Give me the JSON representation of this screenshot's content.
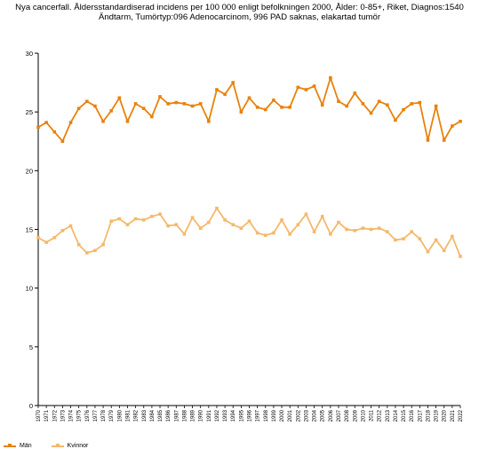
{
  "chart_data": {
    "type": "line",
    "title": "Nya cancerfall. Åldersstandardiserad incidens per 100 000 enligt befolkningen 2000, Ålder: 0-85+, Riket, Diagnos:1540",
    "subtitle": "Ändtarm, Tumörtyp:096 Adenocarcinom, 996 PAD saknas, elakartad tumör",
    "xlabel": "",
    "ylabel": "",
    "ylim": [
      0,
      30
    ],
    "yticks": [
      0,
      5,
      10,
      15,
      20,
      25,
      30
    ],
    "grid": false,
    "legend_position": "bottom-left",
    "categories": [
      "1970",
      "1971",
      "1972",
      "1973",
      "1974",
      "1975",
      "1976",
      "1977",
      "1978",
      "1979",
      "1980",
      "1981",
      "1982",
      "1983",
      "1984",
      "1985",
      "1986",
      "1987",
      "1988",
      "1989",
      "1990",
      "1991",
      "1992",
      "1993",
      "1994",
      "1995",
      "1996",
      "1997",
      "1998",
      "1999",
      "2000",
      "2001",
      "2002",
      "2003",
      "2004",
      "2005",
      "2006",
      "2007",
      "2008",
      "2009",
      "2010",
      "2011",
      "2012",
      "2013",
      "2014",
      "2015",
      "2016",
      "2017",
      "2018",
      "2019",
      "2020",
      "2021",
      "2022"
    ],
    "series": [
      {
        "name": "Män",
        "color": "#e8820c",
        "values": [
          23.7,
          24.1,
          23.3,
          22.5,
          24.1,
          25.3,
          25.9,
          25.5,
          24.2,
          25.1,
          26.2,
          24.2,
          25.7,
          25.3,
          24.6,
          26.3,
          25.7,
          25.8,
          25.7,
          25.5,
          25.7,
          24.2,
          26.9,
          26.5,
          27.5,
          25.0,
          26.2,
          25.4,
          25.2,
          26.0,
          25.4,
          25.4,
          27.1,
          26.9,
          27.2,
          25.6,
          27.9,
          25.9,
          25.5,
          26.6,
          25.7,
          24.9,
          25.9,
          25.6,
          24.3,
          25.2,
          25.7,
          25.8,
          22.6,
          25.5,
          22.6,
          23.8,
          24.2
        ]
      },
      {
        "name": "Kvinnor",
        "color": "#f5b86a",
        "values": [
          14.3,
          13.9,
          14.3,
          14.9,
          15.3,
          13.7,
          13.0,
          13.2,
          13.7,
          15.7,
          15.9,
          15.4,
          15.9,
          15.8,
          16.1,
          16.3,
          15.3,
          15.4,
          14.6,
          16.0,
          15.1,
          15.6,
          16.8,
          15.8,
          15.4,
          15.1,
          15.7,
          14.7,
          14.5,
          14.7,
          15.8,
          14.6,
          15.4,
          16.3,
          14.8,
          16.1,
          14.6,
          15.6,
          15.0,
          14.9,
          15.1,
          15.0,
          15.1,
          14.8,
          14.1,
          14.2,
          14.8,
          14.2,
          13.1,
          14.1,
          13.2,
          14.4,
          12.7
        ]
      }
    ]
  }
}
